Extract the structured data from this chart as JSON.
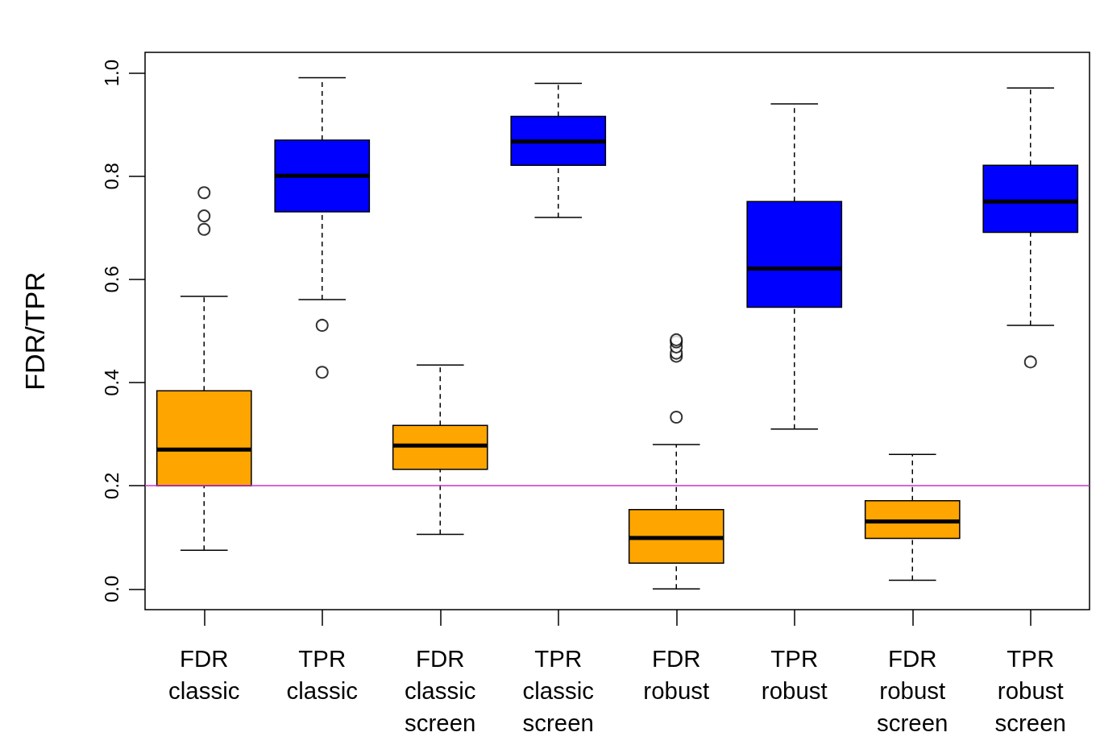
{
  "chart_data": {
    "type": "box",
    "ylabel": "FDR/TPR",
    "categories": [
      "FDR\nclassic",
      "TPR\nclassic",
      "FDR\nclassic\nscreen",
      "TPR\nclassic\nscreen",
      "FDR\nrobust",
      "TPR\nrobust",
      "FDR\nrobust\nscreen",
      "TPR\nrobust\nscreen"
    ],
    "colors": [
      "#ffa500",
      "#0000ff",
      "#ffa500",
      "#0000ff",
      "#ffa500",
      "#0000ff",
      "#ffa500",
      "#0000ff"
    ],
    "boxes": [
      {
        "low": 0.075,
        "q1": 0.2,
        "median": 0.27,
        "q3": 0.384,
        "high": 0.567,
        "outliers": [
          0.697,
          0.723,
          0.768
        ]
      },
      {
        "low": 0.561,
        "q1": 0.731,
        "median": 0.801,
        "q3": 0.87,
        "high": 0.991,
        "outliers": [
          0.511,
          0.42
        ]
      },
      {
        "low": 0.106,
        "q1": 0.232,
        "median": 0.278,
        "q3": 0.317,
        "high": 0.434
      },
      {
        "low": 0.72,
        "q1": 0.821,
        "median": 0.867,
        "q3": 0.916,
        "high": 0.98
      },
      {
        "low": 0,
        "q1": 0.05,
        "median": 0.099,
        "q3": 0.154,
        "high": 0.28,
        "outliers": [
          0.333,
          0.451,
          0.457,
          0.469,
          0.479,
          0.483
        ]
      },
      {
        "low": 0.31,
        "q1": 0.546,
        "median": 0.621,
        "q3": 0.751,
        "high": 0.94
      },
      {
        "low": 0.017,
        "q1": 0.098,
        "median": 0.131,
        "q3": 0.171,
        "high": 0.261
      },
      {
        "low": 0.511,
        "q1": 0.691,
        "median": 0.751,
        "q3": 0.821,
        "high": 0.971,
        "outliers": [
          0.44
        ]
      }
    ],
    "ref_lines": [
      {
        "axis": "y",
        "value": 0.2,
        "color": "#cc33cc"
      }
    ],
    "ylim": [
      -0.04,
      1.04
    ],
    "yticks": [
      {
        "value": 0,
        "label": "0.0"
      },
      0.2,
      0.4,
      0.6,
      0.8,
      {
        "value": 1,
        "label": "1.0"
      }
    ],
    "grid": false
  }
}
